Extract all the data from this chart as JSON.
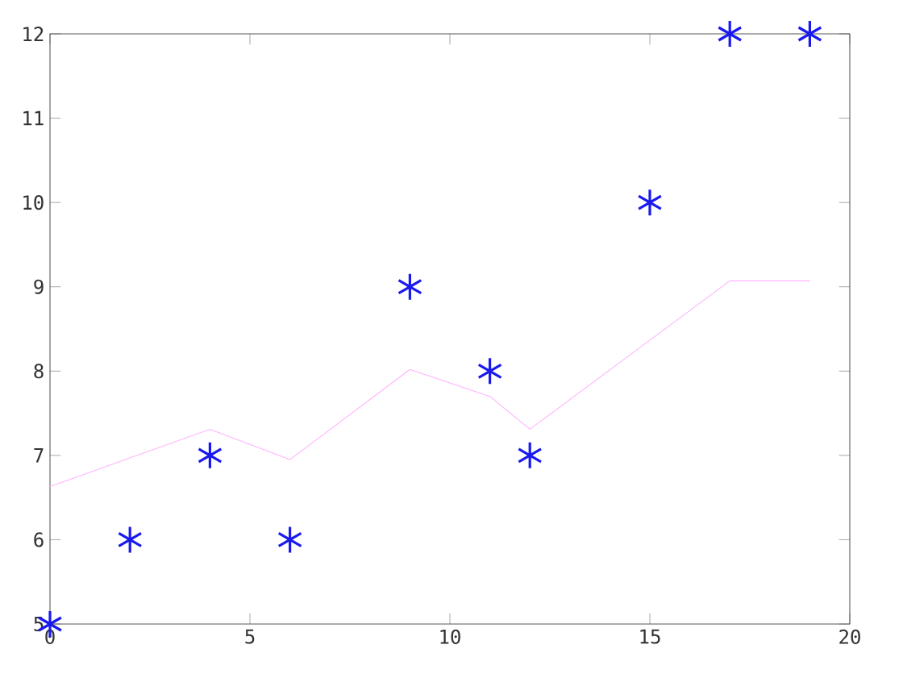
{
  "chart_data": {
    "type": "scatter",
    "series": [
      {
        "color": "#1a1aee",
        "marker": "cross",
        "x": [
          0,
          2,
          4,
          6,
          9,
          11,
          12,
          15,
          17,
          19
        ],
        "values": [
          5,
          6,
          7,
          6,
          9,
          8,
          7,
          10,
          12,
          12
        ]
      },
      {
        "type": "line",
        "color": "#ffb0ff",
        "marker": "none",
        "line_style": "solid",
        "x": [
          0,
          4,
          6,
          9,
          11,
          12,
          17,
          19
        ],
        "values": [
          6.63,
          7.31,
          6.95,
          8.02,
          7.7,
          7.31,
          9.07,
          9.07
        ]
      }
    ],
    "xlim": [
      0,
      20
    ],
    "ylim": [
      5,
      12
    ],
    "xticks": [
      0,
      5,
      10,
      15,
      20
    ],
    "yticks": [
      5,
      6,
      7,
      8,
      9,
      10,
      11,
      12
    ]
  }
}
